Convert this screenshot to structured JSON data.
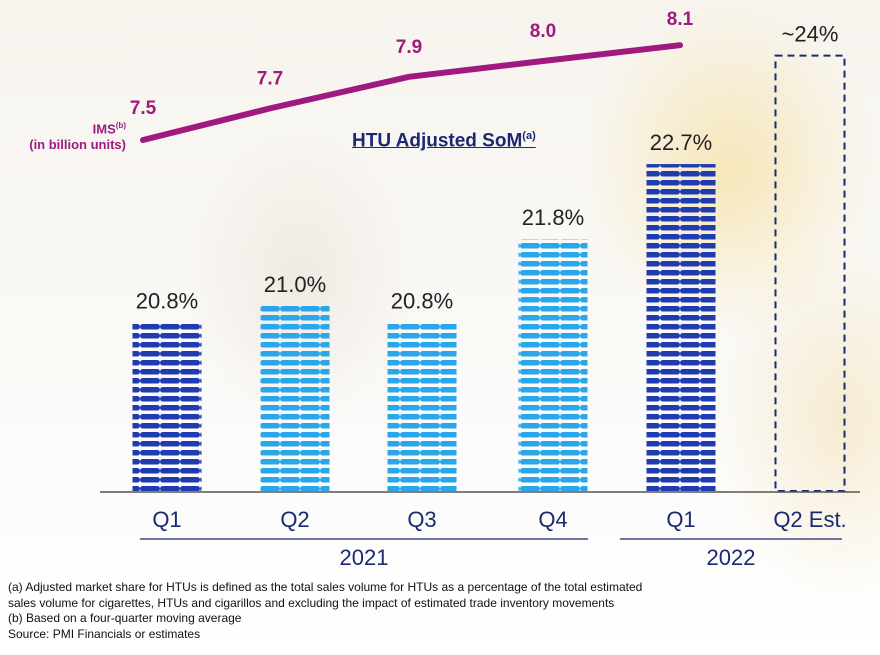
{
  "chart_data": {
    "type": "bar",
    "title": "HTU Adjusted SoM",
    "title_sup": "(a)",
    "categories": [
      "Q1",
      "Q2",
      "Q3",
      "Q4",
      "Q1",
      "Q2 Est."
    ],
    "years": [
      {
        "label": "2021",
        "span": [
          0,
          3
        ]
      },
      {
        "label": "2022",
        "span": [
          4,
          5
        ]
      }
    ],
    "bars": [
      {
        "quarter": "Q1",
        "value": 20.8,
        "label": "20.8%",
        "color": "#1f3bb0",
        "estimate": false
      },
      {
        "quarter": "Q2",
        "value": 21.0,
        "label": "21.0%",
        "color": "#2aa6ea",
        "estimate": false
      },
      {
        "quarter": "Q3",
        "value": 20.8,
        "label": "20.8%",
        "color": "#2aa6ea",
        "estimate": false
      },
      {
        "quarter": "Q4",
        "value": 21.8,
        "label": "21.8%",
        "color": "#2aa6ea",
        "estimate": false
      },
      {
        "quarter": "Q1",
        "value": 22.7,
        "label": "22.7%",
        "color": "#1f3bb0",
        "estimate": false
      },
      {
        "quarter": "Q2 Est.",
        "value": 24,
        "label": "~24%",
        "color": "#1a2a70",
        "estimate": true
      }
    ],
    "line_series": {
      "name": "IMS",
      "name_sup": "(b)",
      "unit": "(in billion units)",
      "color": "#a0197f",
      "values": [
        7.5,
        7.7,
        7.9,
        8.0,
        8.1
      ],
      "labels": [
        "7.5",
        "7.7",
        "7.9",
        "8.0",
        "8.1"
      ]
    }
  },
  "footnotes": [
    "(a)  Adjusted market share for HTUs is defined as the total sales volume for HTUs as a percentage of the total estimated",
    "sales volume for cigarettes, HTUs and cigarillos and excluding the impact of estimated trade inventory movements",
    "(b) Based on a four-quarter moving average",
    "Source: PMI Financials or estimates"
  ]
}
